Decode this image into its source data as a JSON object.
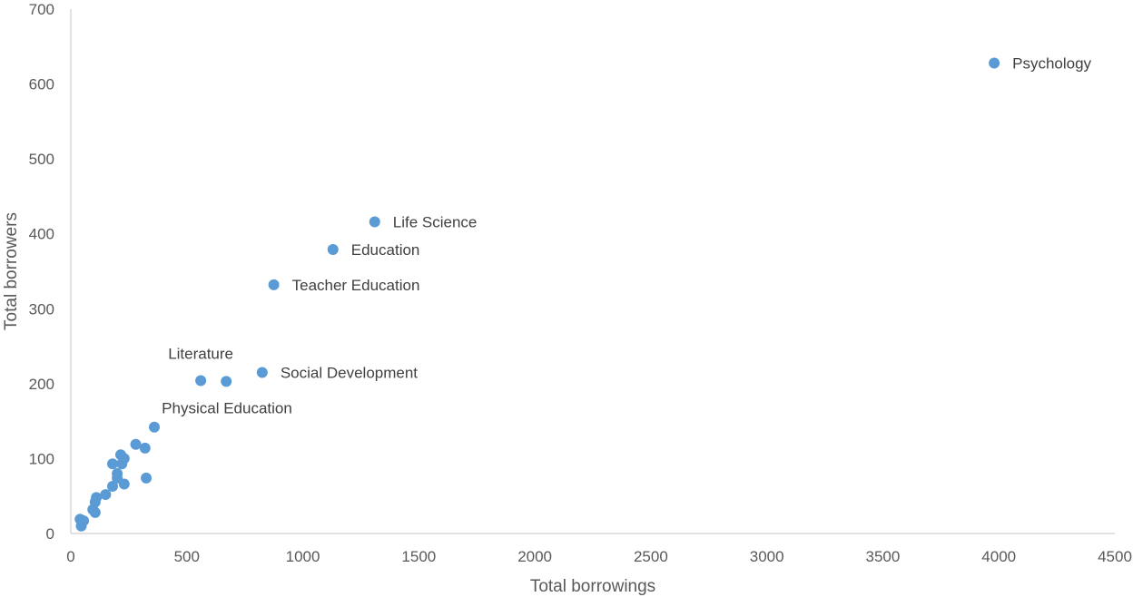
{
  "chart_data": {
    "type": "scatter",
    "title": "",
    "xlabel": "Total borrowings",
    "ylabel": "Total borrowers",
    "xlim": [
      0,
      4500
    ],
    "ylim": [
      0,
      700
    ],
    "x_ticks": [
      0,
      500,
      1000,
      1500,
      2000,
      2500,
      3000,
      3500,
      4000,
      4500
    ],
    "y_ticks": [
      0,
      100,
      200,
      300,
      400,
      500,
      600,
      700
    ],
    "grid": false,
    "legend": "none",
    "marker_color": "#5b9bd5",
    "points": [
      {
        "x": 3980,
        "y": 628,
        "label": "Psychology"
      },
      {
        "x": 1310,
        "y": 416,
        "label": "Life Science"
      },
      {
        "x": 1130,
        "y": 379,
        "label": "Education"
      },
      {
        "x": 875,
        "y": 332,
        "label": "Teacher Education"
      },
      {
        "x": 825,
        "y": 215,
        "label": "Social Development"
      },
      {
        "x": 560,
        "y": 204,
        "label": "Literature"
      },
      {
        "x": 670,
        "y": 203,
        "label": ""
      },
      {
        "x": 360,
        "y": 142,
        "label": "Physical Education"
      },
      {
        "x": 280,
        "y": 119,
        "label": ""
      },
      {
        "x": 320,
        "y": 114,
        "label": ""
      },
      {
        "x": 215,
        "y": 105,
        "label": ""
      },
      {
        "x": 230,
        "y": 100,
        "label": ""
      },
      {
        "x": 220,
        "y": 93,
        "label": ""
      },
      {
        "x": 180,
        "y": 93,
        "label": ""
      },
      {
        "x": 200,
        "y": 80,
        "label": ""
      },
      {
        "x": 200,
        "y": 74,
        "label": ""
      },
      {
        "x": 325,
        "y": 74,
        "label": ""
      },
      {
        "x": 230,
        "y": 66,
        "label": ""
      },
      {
        "x": 180,
        "y": 63,
        "label": ""
      },
      {
        "x": 150,
        "y": 52,
        "label": ""
      },
      {
        "x": 110,
        "y": 48,
        "label": ""
      },
      {
        "x": 105,
        "y": 42,
        "label": ""
      },
      {
        "x": 95,
        "y": 32,
        "label": ""
      },
      {
        "x": 105,
        "y": 28,
        "label": ""
      },
      {
        "x": 40,
        "y": 19,
        "label": ""
      },
      {
        "x": 55,
        "y": 17,
        "label": ""
      },
      {
        "x": 45,
        "y": 10,
        "label": ""
      }
    ]
  }
}
